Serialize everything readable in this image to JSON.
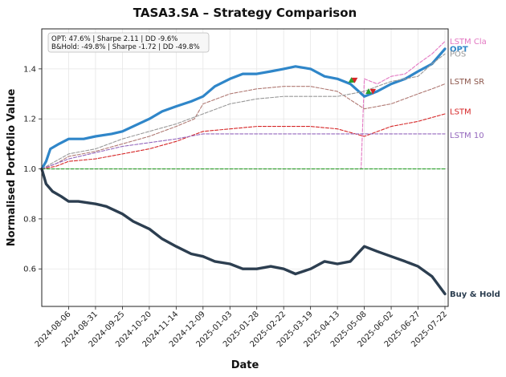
{
  "chart_data": {
    "type": "line",
    "title": "TASA3.SA – Strategy Comparison",
    "xlabel": "Date",
    "ylabel": "Normalised Portfolio Value",
    "xlim": [
      "2024-07-12",
      "2025-07-25"
    ],
    "ylim": [
      0.45,
      1.56
    ],
    "grid": true,
    "x_ticks": [
      "2024-08-06",
      "2024-08-31",
      "2024-09-25",
      "2024-10-20",
      "2024-11-14",
      "2024-12-09",
      "2025-01-03",
      "2025-01-28",
      "2025-02-22",
      "2025-03-19",
      "2025-04-13",
      "2025-05-08",
      "2025-06-02",
      "2025-06-27",
      "2025-07-22"
    ],
    "y_ticks": [
      0.6,
      0.8,
      1.0,
      1.2,
      1.4
    ],
    "y_tick_labels": [
      "0.6",
      "0.8",
      "1.0",
      "1.2",
      "1.4"
    ],
    "info_box": {
      "line1": "OPT: 47.6% | Sharpe 2.11 | DD -9.6%",
      "line2": "B&Hold: -49.8% | Sharpe -1.72 | DD -49.8%"
    },
    "series": [
      {
        "name": "LSTM Cla",
        "color": "#e377c2",
        "style": "dashed",
        "width": 1.1,
        "points": [
          [
            "2024-07-12",
            1.0
          ],
          [
            "2024-07-20",
            1.0
          ],
          [
            "2024-08-01",
            1.0
          ],
          [
            "2024-10-01",
            1.0
          ],
          [
            "2025-01-01",
            1.0
          ],
          [
            "2025-05-05",
            1.0
          ],
          [
            "2025-05-08",
            1.36
          ],
          [
            "2025-05-20",
            1.34
          ],
          [
            "2025-06-02",
            1.37
          ],
          [
            "2025-06-15",
            1.38
          ],
          [
            "2025-06-27",
            1.42
          ],
          [
            "2025-07-10",
            1.46
          ],
          [
            "2025-07-22",
            1.51
          ]
        ]
      },
      {
        "name": "OPT",
        "color": "#2f86c9",
        "style": "solid",
        "width": 3.2,
        "points": [
          [
            "2024-07-12",
            1.0
          ],
          [
            "2024-07-16",
            1.03
          ],
          [
            "2024-07-20",
            1.08
          ],
          [
            "2024-07-28",
            1.1
          ],
          [
            "2024-08-06",
            1.12
          ],
          [
            "2024-08-20",
            1.12
          ],
          [
            "2024-08-31",
            1.13
          ],
          [
            "2024-09-15",
            1.14
          ],
          [
            "2024-09-25",
            1.15
          ],
          [
            "2024-10-05",
            1.17
          ],
          [
            "2024-10-20",
            1.2
          ],
          [
            "2024-11-01",
            1.23
          ],
          [
            "2024-11-14",
            1.25
          ],
          [
            "2024-11-28",
            1.27
          ],
          [
            "2024-12-09",
            1.29
          ],
          [
            "2024-12-20",
            1.33
          ],
          [
            "2025-01-03",
            1.36
          ],
          [
            "2025-01-15",
            1.38
          ],
          [
            "2025-01-28",
            1.38
          ],
          [
            "2025-02-10",
            1.39
          ],
          [
            "2025-02-22",
            1.4
          ],
          [
            "2025-03-05",
            1.41
          ],
          [
            "2025-03-19",
            1.4
          ],
          [
            "2025-04-01",
            1.37
          ],
          [
            "2025-04-13",
            1.36
          ],
          [
            "2025-04-25",
            1.34
          ],
          [
            "2025-05-08",
            1.29
          ],
          [
            "2025-05-20",
            1.31
          ],
          [
            "2025-06-02",
            1.34
          ],
          [
            "2025-06-15",
            1.36
          ],
          [
            "2025-06-27",
            1.39
          ],
          [
            "2025-07-10",
            1.42
          ],
          [
            "2025-07-22",
            1.48
          ]
        ]
      },
      {
        "name": "LSTM SR",
        "color": "#b07a74",
        "style": "dashed",
        "width": 1.1,
        "points": [
          [
            "2024-07-12",
            1.0
          ],
          [
            "2024-07-25",
            1.02
          ],
          [
            "2024-08-06",
            1.05
          ],
          [
            "2024-08-31",
            1.07
          ],
          [
            "2024-09-25",
            1.1
          ],
          [
            "2024-10-20",
            1.13
          ],
          [
            "2024-11-14",
            1.17
          ],
          [
            "2024-12-01",
            1.2
          ],
          [
            "2024-12-09",
            1.26
          ],
          [
            "2025-01-03",
            1.3
          ],
          [
            "2025-01-28",
            1.32
          ],
          [
            "2025-02-22",
            1.33
          ],
          [
            "2025-03-19",
            1.33
          ],
          [
            "2025-04-13",
            1.31
          ],
          [
            "2025-05-08",
            1.24
          ],
          [
            "2025-06-02",
            1.26
          ],
          [
            "2025-06-27",
            1.3
          ],
          [
            "2025-07-10",
            1.32
          ],
          [
            "2025-07-22",
            1.34
          ]
        ]
      },
      {
        "name": "LSTM",
        "color": "#d62728",
        "style": "dashed",
        "width": 1.1,
        "points": [
          [
            "2024-07-12",
            1.0
          ],
          [
            "2024-07-25",
            1.01
          ],
          [
            "2024-08-06",
            1.03
          ],
          [
            "2024-08-31",
            1.04
          ],
          [
            "2024-09-25",
            1.06
          ],
          [
            "2024-10-20",
            1.08
          ],
          [
            "2024-11-14",
            1.11
          ],
          [
            "2024-12-09",
            1.15
          ],
          [
            "2025-01-03",
            1.16
          ],
          [
            "2025-01-28",
            1.17
          ],
          [
            "2025-02-22",
            1.17
          ],
          [
            "2025-03-19",
            1.17
          ],
          [
            "2025-04-13",
            1.16
          ],
          [
            "2025-05-08",
            1.13
          ],
          [
            "2025-06-02",
            1.17
          ],
          [
            "2025-06-27",
            1.19
          ],
          [
            "2025-07-22",
            1.22
          ]
        ]
      },
      {
        "name": "",
        "color": "#999999",
        "style": "dashed",
        "width": 1.1,
        "points": [
          [
            "2024-07-12",
            1.0
          ],
          [
            "2024-08-06",
            1.06
          ],
          [
            "2024-08-31",
            1.08
          ],
          [
            "2024-09-25",
            1.12
          ],
          [
            "2024-10-20",
            1.15
          ],
          [
            "2024-11-14",
            1.18
          ],
          [
            "2024-12-09",
            1.22
          ],
          [
            "2025-01-03",
            1.26
          ],
          [
            "2025-01-28",
            1.28
          ],
          [
            "2025-02-22",
            1.29
          ],
          [
            "2025-03-19",
            1.29
          ],
          [
            "2025-04-13",
            1.29
          ],
          [
            "2025-05-08",
            1.31
          ],
          [
            "2025-05-20",
            1.33
          ],
          [
            "2025-06-02",
            1.35
          ],
          [
            "2025-06-27",
            1.37
          ],
          [
            "2025-07-10",
            1.42
          ],
          [
            "2025-07-22",
            1.46
          ]
        ]
      },
      {
        "name": "LSTM 10",
        "color": "#9467bd",
        "style": "dashed",
        "width": 1.1,
        "points": [
          [
            "2024-07-12",
            1.0
          ],
          [
            "2024-08-06",
            1.04
          ],
          [
            "2024-09-25",
            1.09
          ],
          [
            "2024-11-14",
            1.12
          ],
          [
            "2024-12-09",
            1.14
          ],
          [
            "2025-01-03",
            1.14
          ],
          [
            "2025-03-19",
            1.14
          ],
          [
            "2025-05-08",
            1.14
          ],
          [
            "2025-06-27",
            1.14
          ],
          [
            "2025-07-22",
            1.14
          ]
        ]
      },
      {
        "name": "",
        "color": "#2ca02c",
        "style": "dashed",
        "width": 1.1,
        "points": [
          [
            "2024-07-12",
            1.0
          ],
          [
            "2025-07-22",
            1.0
          ]
        ]
      },
      {
        "name": "Buy & Hold",
        "color": "#2c3e50",
        "style": "solid",
        "width": 3.4,
        "points": [
          [
            "2024-07-12",
            1.0
          ],
          [
            "2024-07-16",
            0.94
          ],
          [
            "2024-07-22",
            0.91
          ],
          [
            "2024-07-30",
            0.89
          ],
          [
            "2024-08-06",
            0.87
          ],
          [
            "2024-08-15",
            0.87
          ],
          [
            "2024-08-31",
            0.86
          ],
          [
            "2024-09-10",
            0.85
          ],
          [
            "2024-09-25",
            0.82
          ],
          [
            "2024-10-05",
            0.79
          ],
          [
            "2024-10-20",
            0.76
          ],
          [
            "2024-11-01",
            0.72
          ],
          [
            "2024-11-14",
            0.69
          ],
          [
            "2024-11-28",
            0.66
          ],
          [
            "2024-12-09",
            0.65
          ],
          [
            "2024-12-20",
            0.63
          ],
          [
            "2025-01-03",
            0.62
          ],
          [
            "2025-01-15",
            0.6
          ],
          [
            "2025-01-28",
            0.6
          ],
          [
            "2025-02-10",
            0.61
          ],
          [
            "2025-02-22",
            0.6
          ],
          [
            "2025-03-05",
            0.58
          ],
          [
            "2025-03-19",
            0.6
          ],
          [
            "2025-04-01",
            0.63
          ],
          [
            "2025-04-13",
            0.62
          ],
          [
            "2025-04-25",
            0.63
          ],
          [
            "2025-05-08",
            0.69
          ],
          [
            "2025-05-20",
            0.67
          ],
          [
            "2025-06-02",
            0.65
          ],
          [
            "2025-06-15",
            0.63
          ],
          [
            "2025-06-27",
            0.61
          ],
          [
            "2025-07-10",
            0.57
          ],
          [
            "2025-07-22",
            0.5
          ]
        ]
      }
    ],
    "end_labels": [
      {
        "text": "LSTM Cla",
        "color": "#e377c2",
        "value": 1.51
      },
      {
        "text": "OPT",
        "color": "#2f86c9",
        "value": 1.48,
        "bold": true
      },
      {
        "text": "POS",
        "color": "#999999",
        "value": 1.46
      },
      {
        "text": "LSTM SR",
        "color": "#8c564b",
        "value": 1.35
      },
      {
        "text": "LSTM",
        "color": "#d62728",
        "value": 1.23
      },
      {
        "text": "LSTM 10",
        "color": "#9467bd",
        "value": 1.135
      },
      {
        "text": "Buy & Hold",
        "color": "#2c3e50",
        "value": 0.5,
        "bold": true
      }
    ],
    "markers": [
      {
        "date": "2025-04-26",
        "value": 1.355,
        "shape": "triangle-up",
        "color": "#2ca02c"
      },
      {
        "date": "2025-04-29",
        "value": 1.355,
        "shape": "triangle-down",
        "color": "#d62728"
      },
      {
        "date": "2025-05-12",
        "value": 1.31,
        "shape": "triangle-up",
        "color": "#2ca02c"
      },
      {
        "date": "2025-05-16",
        "value": 1.31,
        "shape": "triangle-down",
        "color": "#d62728"
      }
    ]
  }
}
